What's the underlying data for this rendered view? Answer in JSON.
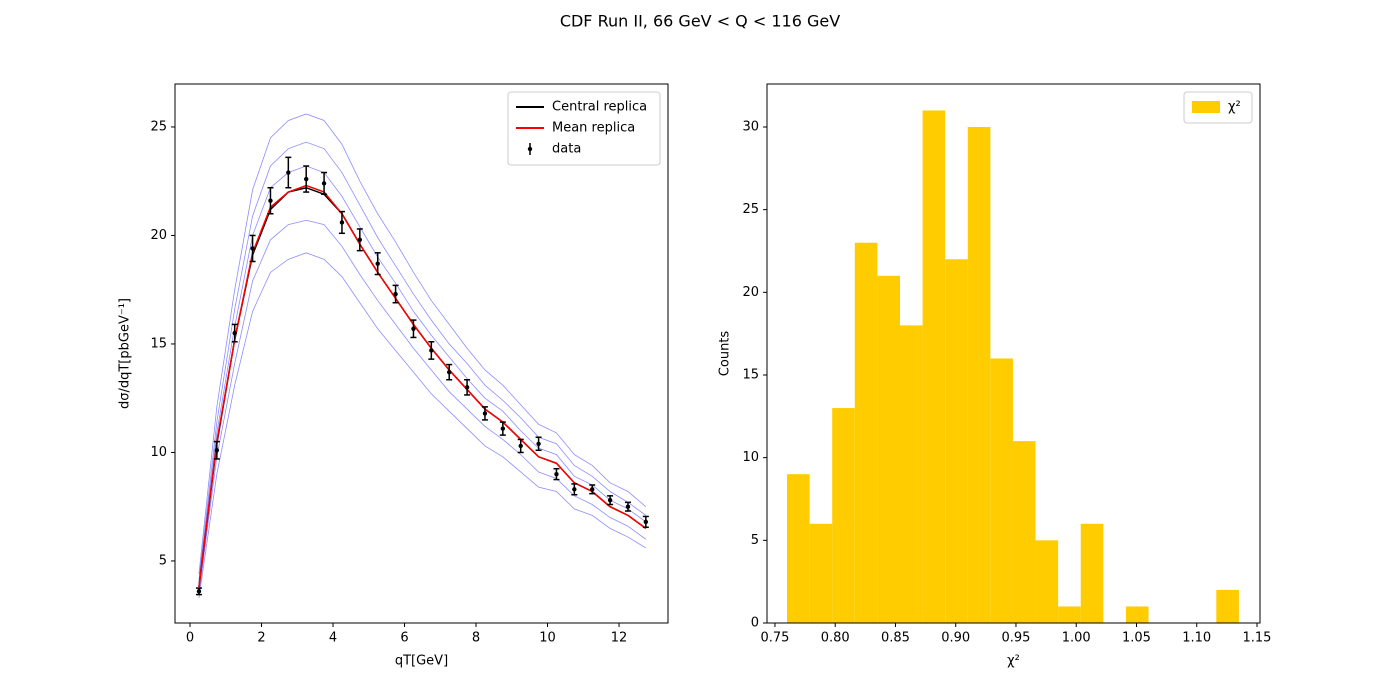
{
  "title": "CDF Run II, 66 GeV < Q < 116 GeV",
  "chart_data": [
    {
      "type": "line",
      "x": [
        0.25,
        0.75,
        1.25,
        1.75,
        2.25,
        2.75,
        3.25,
        3.75,
        4.25,
        4.75,
        5.25,
        5.75,
        6.25,
        6.75,
        7.25,
        7.75,
        8.25,
        8.75,
        9.25,
        9.75,
        10.25,
        10.75,
        11.25,
        11.75,
        12.25,
        12.75
      ],
      "replicas": {
        "color": "#0000ff",
        "values": [
          [
            3.3,
            9.0,
            13.1,
            16.5,
            18.3,
            18.9,
            19.2,
            18.9,
            18.1,
            16.9,
            15.7,
            14.7,
            13.7,
            12.7,
            11.9,
            11.1,
            10.3,
            9.8,
            9.1,
            8.4,
            8.2,
            7.4,
            7.1,
            6.5,
            6.1,
            5.6
          ],
          [
            3.5,
            9.8,
            14.1,
            17.9,
            19.8,
            20.5,
            20.7,
            20.5,
            19.5,
            18.2,
            17.0,
            15.9,
            14.8,
            13.8,
            12.8,
            12.0,
            11.2,
            10.6,
            9.9,
            9.1,
            8.8,
            8.0,
            7.6,
            7.0,
            6.6,
            6.0
          ],
          [
            4.0,
            10.9,
            15.8,
            20.0,
            22.2,
            22.9,
            23.2,
            22.9,
            21.8,
            20.4,
            19.0,
            17.8,
            16.5,
            15.4,
            14.4,
            13.4,
            12.5,
            11.9,
            11.0,
            10.2,
            9.9,
            8.9,
            8.5,
            7.8,
            7.4,
            6.8
          ],
          [
            4.1,
            11.4,
            16.6,
            20.9,
            23.2,
            24.0,
            24.3,
            24.0,
            22.9,
            21.4,
            19.9,
            18.6,
            17.3,
            16.1,
            15.0,
            14.1,
            13.1,
            12.4,
            11.6,
            10.7,
            10.4,
            9.4,
            8.9,
            8.2,
            7.7,
            7.1
          ],
          [
            4.4,
            12.1,
            17.5,
            22.1,
            24.5,
            25.3,
            25.6,
            25.3,
            24.2,
            22.5,
            21.0,
            19.7,
            18.3,
            17.0,
            15.9,
            14.8,
            13.8,
            13.1,
            12.2,
            11.3,
            10.9,
            9.9,
            9.4,
            8.6,
            8.2,
            7.5
          ]
        ]
      },
      "series": [
        {
          "name": "Central replica",
          "color": "#000000",
          "values": [
            3.8,
            10.4,
            15.2,
            19.1,
            21.2,
            22.0,
            22.2,
            21.9,
            21.0,
            19.6,
            18.3,
            17.1,
            15.9,
            14.8,
            13.8,
            12.9,
            12.0,
            11.4,
            10.6,
            9.8,
            9.5,
            8.6,
            8.2,
            7.5,
            7.1,
            6.5
          ]
        },
        {
          "name": "Mean replica",
          "color": "#ff0000",
          "values": [
            3.8,
            10.5,
            15.2,
            19.2,
            21.3,
            22.0,
            22.3,
            22.0,
            21.0,
            19.6,
            18.3,
            17.1,
            15.9,
            14.8,
            13.8,
            12.9,
            12.0,
            11.4,
            10.6,
            9.8,
            9.5,
            8.6,
            8.2,
            7.5,
            7.1,
            6.5
          ]
        },
        {
          "name": "data",
          "color": "#000000",
          "style": "errorbar",
          "values": [
            3.6,
            10.1,
            15.5,
            19.4,
            21.6,
            22.9,
            22.6,
            22.4,
            20.6,
            19.8,
            18.7,
            17.3,
            15.7,
            14.7,
            13.7,
            13.0,
            11.8,
            11.1,
            10.3,
            10.4,
            9.0,
            8.3,
            8.3,
            7.8,
            7.5,
            6.8
          ],
          "errors": [
            0.15,
            0.4,
            0.4,
            0.6,
            0.6,
            0.7,
            0.6,
            0.5,
            0.5,
            0.5,
            0.5,
            0.4,
            0.4,
            0.4,
            0.35,
            0.35,
            0.3,
            0.3,
            0.3,
            0.3,
            0.25,
            0.25,
            0.2,
            0.2,
            0.2,
            0.25
          ]
        }
      ],
      "x_label": "qT[GeV]",
      "y_label": "dσ/dqT[pbGeV⁻¹]",
      "xlim": [
        -0.42,
        13.37
      ],
      "ylim": [
        2.14,
        26.98
      ],
      "xticks": [
        0,
        2,
        4,
        6,
        8,
        10,
        12
      ],
      "yticks": [
        5,
        10,
        15,
        20,
        25
      ],
      "legend": "upper right"
    },
    {
      "type": "histogram",
      "name": "χ²",
      "color": "#ffcc00",
      "bins": [
        0.76,
        0.77875,
        0.7975,
        0.81625,
        0.835,
        0.85375,
        0.8725,
        0.89125,
        0.91,
        0.92875,
        0.9475,
        0.96625,
        0.985,
        1.00375,
        1.0225,
        1.04125,
        1.06,
        1.07875,
        1.0975,
        1.11625,
        1.135
      ],
      "counts": [
        9,
        6,
        13,
        23,
        21,
        18,
        31,
        22,
        30,
        16,
        11,
        5,
        1,
        6,
        0,
        1,
        0,
        0,
        0,
        2
      ],
      "x_label": "χ²",
      "y_label": "Counts",
      "xlim": [
        0.7434,
        1.1525
      ],
      "ylim": [
        0,
        32.6
      ],
      "xticks": [
        0.75,
        {
          "value": 0.8,
          "label": "0.80"
        },
        0.85,
        {
          "value": 0.9,
          "label": "0.90"
        },
        0.95,
        {
          "value": 1.0,
          "label": "1.00"
        },
        1.05,
        {
          "value": 1.1,
          "label": "1.10"
        },
        1.15
      ],
      "yticks": [
        0,
        5,
        10,
        15,
        20,
        25,
        30
      ],
      "legend": "upper right"
    }
  ]
}
